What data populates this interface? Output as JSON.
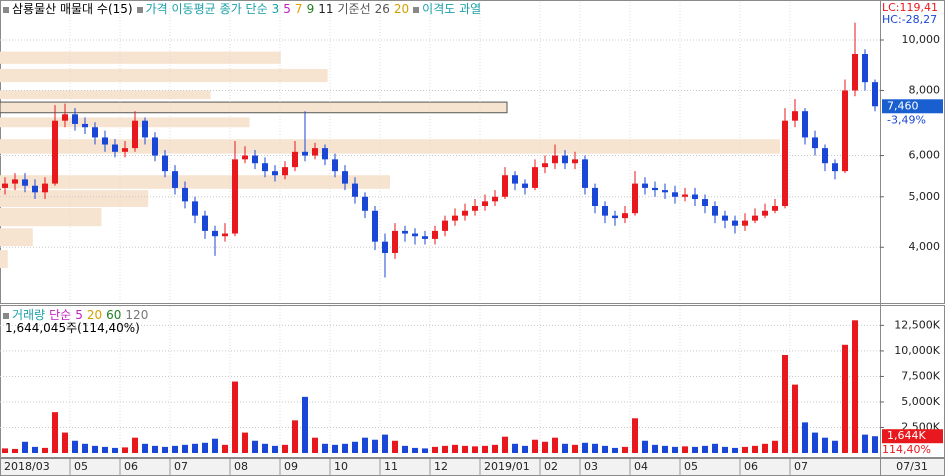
{
  "chart_data": [
    {
      "type": "candlestick",
      "title": "삼룡물산 매물대 수(15)",
      "legend": [
        {
          "text": "가격 이동평균",
          "color": "#1aa0a8"
        },
        {
          "text": "종가 단순",
          "color": "#1aa0a8"
        },
        {
          "text": "3",
          "color": "#1aa0a8"
        },
        {
          "text": "5",
          "color": "#c020c0"
        },
        {
          "text": "7",
          "color": "#e0a000"
        },
        {
          "text": "9",
          "color": "#208020"
        },
        {
          "text": "11",
          "color": "#222222"
        },
        {
          "text": "기준선",
          "color": "#555555"
        },
        {
          "text": "26",
          "color": "#555555"
        },
        {
          "text": "20",
          "color": "#d4a000"
        },
        {
          "text": "이격도 과열",
          "color": "#1aa0a8"
        }
      ],
      "lc_label": "LC:119,41",
      "hc_label": "HC:-28,27",
      "last_label": "7,460",
      "change_label": "-3,49%",
      "categories": [
        "2018/03",
        null,
        null,
        null,
        null,
        null,
        null,
        "05",
        null,
        null,
        null,
        null,
        "06",
        null,
        null,
        null,
        null,
        "07",
        null,
        null,
        null,
        null,
        null,
        "08",
        null,
        null,
        null,
        null,
        "09",
        null,
        null,
        null,
        null,
        "10",
        null,
        null,
        null,
        null,
        "11",
        null,
        null,
        null,
        null,
        "12",
        null,
        null,
        null,
        null,
        "2019/01",
        null,
        null,
        null,
        null,
        null,
        "02",
        null,
        null,
        null,
        "03",
        null,
        null,
        null,
        null,
        "04",
        null,
        null,
        null,
        null,
        "05",
        null,
        null,
        null,
        null,
        null,
        "06",
        null,
        null,
        null,
        null,
        "07",
        null,
        null,
        null,
        null,
        null,
        null,
        null,
        "07/31"
      ],
      "open": [
        5200,
        5300,
        5400,
        5250,
        5100,
        5300,
        7000,
        7200,
        6900,
        6800,
        6500,
        6300,
        6100,
        6200,
        7000,
        6500,
        6000,
        5600,
        5200,
        4900,
        4600,
        4300,
        4200,
        4250,
        5900,
        6000,
        5800,
        5600,
        5500,
        5700,
        6100,
        6000,
        6200,
        5900,
        5600,
        5300,
        5000,
        4700,
        4100,
        3900,
        4300,
        4250,
        4200,
        4150,
        4300,
        4500,
        4600,
        4700,
        4800,
        4900,
        5000,
        5500,
        5300,
        5200,
        5700,
        5800,
        6000,
        5800,
        5900,
        5200,
        4800,
        4600,
        4550,
        4650,
        5300,
        5200,
        5150,
        5100,
        5000,
        5050,
        4950,
        4800,
        4600,
        4500,
        4400,
        4500,
        4600,
        4700,
        4800,
        7000,
        7300,
        6500,
        6200,
        5800,
        5600,
        8000,
        9400,
        8300
      ],
      "high": [
        5450,
        5550,
        5550,
        5400,
        5450,
        7500,
        7550,
        7400,
        7100,
        6950,
        6700,
        6450,
        6400,
        7300,
        7100,
        6650,
        6150,
        5750,
        5350,
        5000,
        4700,
        4400,
        4450,
        6400,
        6250,
        6150,
        5950,
        5750,
        5850,
        6400,
        7300,
        6350,
        6300,
        6050,
        5750,
        5450,
        5100,
        4800,
        4250,
        4450,
        4400,
        4350,
        4300,
        4400,
        4600,
        4750,
        4850,
        4950,
        5050,
        5150,
        5700,
        5600,
        5400,
        5900,
        6000,
        6300,
        6150,
        6100,
        6000,
        5300,
        4900,
        4700,
        4800,
        5600,
        5450,
        5350,
        5300,
        5250,
        5200,
        5200,
        5050,
        4900,
        4700,
        4600,
        4650,
        4750,
        4850,
        4950,
        7400,
        7700,
        7400,
        6700,
        6300,
        5900,
        8400,
        10800,
        9600,
        8400
      ],
      "low": [
        5050,
        5150,
        5100,
        4950,
        4950,
        5250,
        6800,
        6700,
        6600,
        6300,
        6100,
        5950,
        5950,
        6100,
        6300,
        5850,
        5450,
        5050,
        4750,
        4450,
        4150,
        3850,
        4100,
        4200,
        5800,
        5650,
        5450,
        5350,
        5400,
        5600,
        5850,
        5900,
        5750,
        5450,
        5150,
        4850,
        4550,
        3950,
        3500,
        3800,
        4100,
        4050,
        4050,
        4050,
        4200,
        4400,
        4500,
        4600,
        4700,
        4800,
        4950,
        5150,
        5050,
        5150,
        5550,
        5650,
        5650,
        5650,
        5050,
        4650,
        4450,
        4400,
        4450,
        4600,
        5050,
        5000,
        4950,
        4850,
        4900,
        4800,
        4650,
        4450,
        4350,
        4250,
        4300,
        4450,
        4550,
        4650,
        4750,
        6800,
        6300,
        6000,
        5600,
        5400,
        5550,
        7800,
        8000,
        7300
      ],
      "close": [
        5300,
        5400,
        5250,
        5100,
        5300,
        7000,
        7200,
        6900,
        6800,
        6500,
        6300,
        6100,
        6200,
        7000,
        6500,
        6000,
        5600,
        5200,
        4900,
        4600,
        4300,
        4200,
        4250,
        5900,
        6000,
        5800,
        5600,
        5500,
        5700,
        6100,
        6000,
        6200,
        5900,
        5600,
        5300,
        5000,
        4700,
        4100,
        3900,
        4300,
        4250,
        4200,
        4150,
        4300,
        4500,
        4600,
        4700,
        4800,
        4900,
        5000,
        5500,
        5300,
        5200,
        5700,
        5800,
        6000,
        5800,
        5900,
        5200,
        4800,
        4600,
        4550,
        4650,
        5300,
        5200,
        5150,
        5100,
        5000,
        5050,
        4950,
        4800,
        4600,
        4500,
        4400,
        4500,
        4600,
        4700,
        4800,
        7000,
        7300,
        6500,
        6200,
        5800,
        5600,
        8000,
        9400,
        8300,
        7460
      ],
      "up_color": "#e8191e",
      "down_color": "#1a47d6",
      "volume_profile": {
        "low": [
          9000,
          8300,
          7700,
          7250,
          6800,
          6050,
          5180,
          4780,
          4390,
          4020,
          3650
        ],
        "high": [
          9500,
          8800,
          8000,
          7600,
          7100,
          6450,
          5500,
          5150,
          4760,
          4350,
          3950
        ],
        "values": [
          3600000,
          4200000,
          2700000,
          6500000,
          3200000,
          10000000,
          5000000,
          1900000,
          1300000,
          420000,
          100000
        ],
        "color": "#f6e4d0"
      },
      "log_scale": true,
      "ylim": [
        3140,
        11830
      ],
      "yticks": [
        {
          "value": 4000,
          "label": "4,000"
        },
        {
          "value": 5000,
          "label": "5,000"
        },
        {
          "value": 6000,
          "label": "6,000"
        },
        {
          "value": 8000,
          "label": "8,000"
        },
        {
          "value": 10000,
          "label": "10,000"
        }
      ],
      "grid": true
    },
    {
      "type": "bar",
      "title": "거래량",
      "legend": [
        {
          "text": "단순",
          "color": "#c020c0"
        },
        {
          "text": "5",
          "color": "#c020c0"
        },
        {
          "text": "20",
          "color": "#d4a000"
        },
        {
          "text": "60",
          "color": "#208020"
        },
        {
          "text": "120",
          "color": "#777777"
        }
      ],
      "subtitle": "1,644,045주(114,40%)",
      "last_label": "1,644K",
      "ratio_label": "114,40%",
      "values": [
        450000,
        400000,
        1100000,
        600000,
        500000,
        4000000,
        2000000,
        1200000,
        900000,
        700000,
        600000,
        500000,
        550000,
        1500000,
        900000,
        700000,
        600000,
        700000,
        800000,
        900000,
        1000000,
        1400000,
        800000,
        7000000,
        2000000,
        1200000,
        900000,
        700000,
        800000,
        3200000,
        5500000,
        1500000,
        900000,
        800000,
        900000,
        1100000,
        1500000,
        1300000,
        1800000,
        1200000,
        700000,
        500000,
        450000,
        600000,
        700000,
        800000,
        700000,
        650000,
        700000,
        800000,
        1600000,
        900000,
        700000,
        1300000,
        1100000,
        1500000,
        900000,
        800000,
        1000000,
        900000,
        700000,
        500000,
        600000,
        3400000,
        1200000,
        800000,
        700000,
        600000,
        650000,
        600000,
        700000,
        900000,
        600000,
        500000,
        600000,
        700000,
        900000,
        1200000,
        9600000,
        6700000,
        3000000,
        2000000,
        1500000,
        1200000,
        10600000,
        13000000,
        1800000,
        1644045
      ],
      "ylim": [
        0,
        14400000
      ],
      "yticks": [
        {
          "value": 2500000,
          "label": "2,500K"
        },
        {
          "value": 5000000,
          "label": "5,000K"
        },
        {
          "value": 7500000,
          "label": "7,500K"
        },
        {
          "value": 10000000,
          "label": "10,000K"
        },
        {
          "value": 12500000,
          "label": "12,500K"
        }
      ],
      "grid": true
    }
  ]
}
